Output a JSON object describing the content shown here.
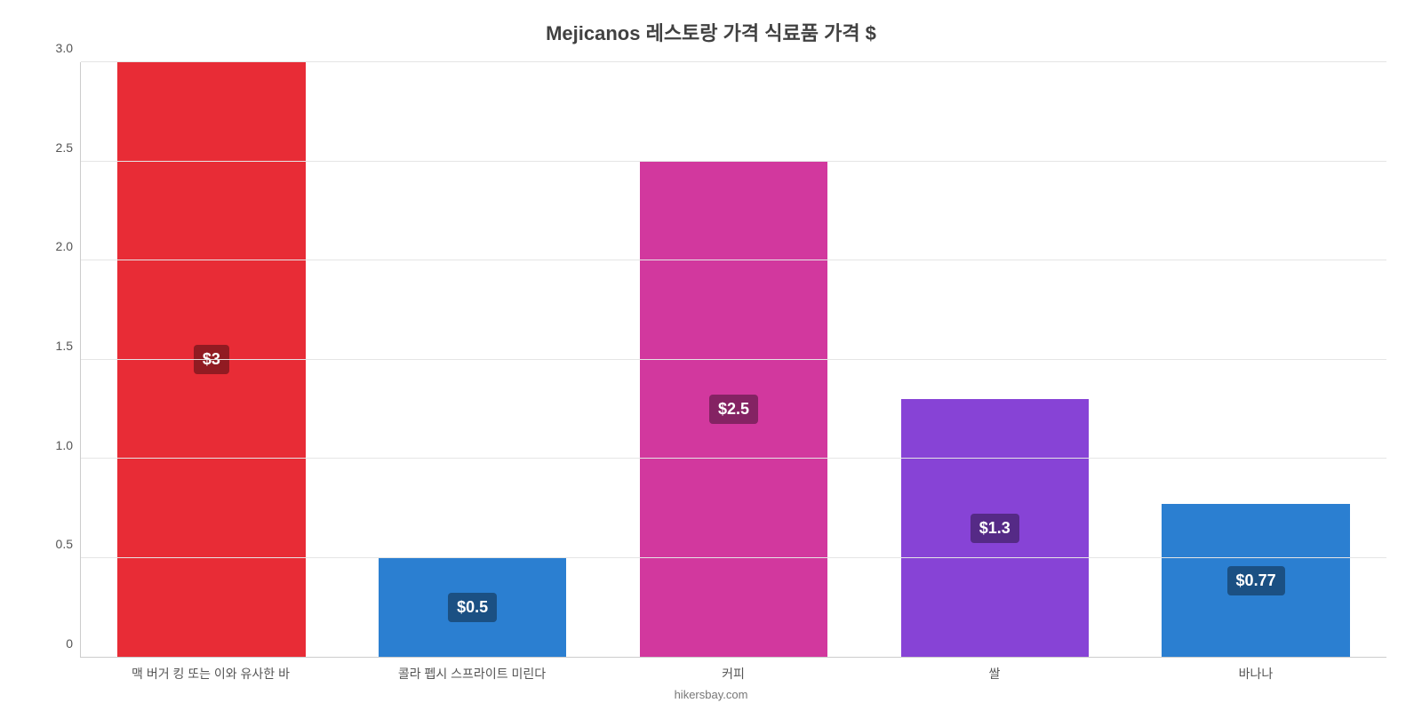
{
  "chart": {
    "type": "bar",
    "title": "Mejicanos 레스토랑 가격 식료품 가격 $",
    "title_fontsize": 22,
    "title_color": "#414141",
    "background_color": "#ffffff",
    "grid_color": "#e5e5e5",
    "axis_color": "#cccccc",
    "tick_color": "#555555",
    "tick_fontsize": 14,
    "xlabel_fontsize": 14,
    "badge_fontsize": 18,
    "attribution": "hikersbay.com",
    "attribution_fontsize": 13,
    "attribution_color": "#777777",
    "y_axis": {
      "min": 0,
      "max": 3.0,
      "ticks": [
        {
          "value": 0,
          "label": "0"
        },
        {
          "value": 0.5,
          "label": "0.5"
        },
        {
          "value": 1.0,
          "label": "1.0"
        },
        {
          "value": 1.5,
          "label": "1.5"
        },
        {
          "value": 2.0,
          "label": "2.0"
        },
        {
          "value": 2.5,
          "label": "2.5"
        },
        {
          "value": 3.0,
          "label": "3.0"
        }
      ]
    },
    "bar_width_pct": 72,
    "bars": [
      {
        "category": "맥 버거 킹 또는 이와 유사한 바",
        "value": 3.0,
        "value_label": "$3",
        "bar_color": "#e82c36",
        "badge_bg": "#911b22"
      },
      {
        "category": "콜라 펩시 스프라이트 미린다",
        "value": 0.5,
        "value_label": "$0.5",
        "bar_color": "#2b7fd1",
        "badge_bg": "#1b5083"
      },
      {
        "category": "커피",
        "value": 2.5,
        "value_label": "$2.5",
        "bar_color": "#d2389e",
        "badge_bg": "#842363"
      },
      {
        "category": "쌀",
        "value": 1.3,
        "value_label": "$1.3",
        "bar_color": "#8743d6",
        "badge_bg": "#552a86"
      },
      {
        "category": "바나나",
        "value": 0.77,
        "value_label": "$0.77",
        "bar_color": "#2b7fd1",
        "badge_bg": "#1b5083"
      }
    ]
  }
}
